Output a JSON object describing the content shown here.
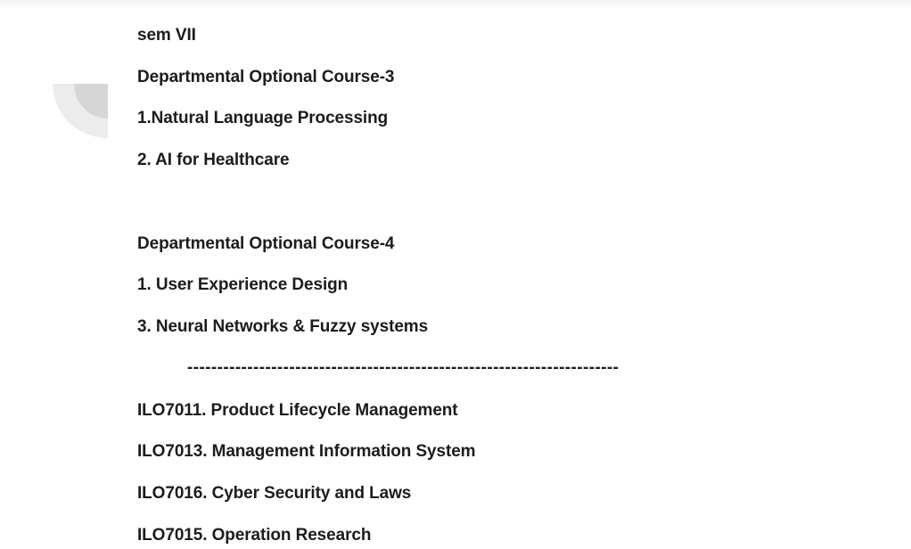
{
  "document": {
    "semester": "sem VII",
    "course3": {
      "heading": "Departmental Optional Course-3",
      "items": [
        "1.Natural Language Processing",
        "2. AI for Healthcare"
      ]
    },
    "course4": {
      "heading": "Departmental Optional Course-4",
      "items": [
        "1. User Experience Design",
        "3. Neural Networks & Fuzzy systems"
      ]
    },
    "separator": "------------------------------------------------------------------------",
    "ilo_items": [
      "ILO7011. Product Lifecycle Management",
      "ILO7013. Management Information System",
      "ILO7016. Cyber Security and Laws",
      "ILO7015. Operation Research"
    ]
  },
  "colors": {
    "text": "#1c1c1c",
    "decoration_outer": "#ececec",
    "decoration_inner": "#d6d6d6"
  },
  "icons": {
    "margin_decoration": "quarter-circle-arc-icon"
  }
}
